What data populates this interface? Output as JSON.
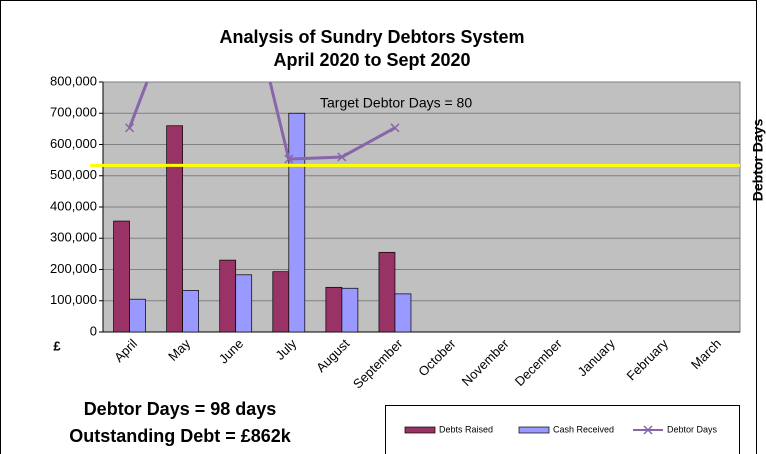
{
  "chart_data": {
    "type": "bar",
    "title": "Analysis of Sundry Debtors System",
    "subtitle": "April 2020 to Sept 2020",
    "y_label": "£",
    "y2_label": "Debtor Days",
    "categories": [
      "April",
      "May",
      "June",
      "July",
      "August",
      "September",
      "October",
      "November",
      "December",
      "January",
      "February",
      "March"
    ],
    "series": [
      {
        "name": "Debts Raised",
        "type": "bar",
        "color": "#993366",
        "values": [
          355000,
          660000,
          230000,
          193000,
          143000,
          255000,
          null,
          null,
          null,
          null,
          null,
          null
        ]
      },
      {
        "name": "Cash Received",
        "type": "bar",
        "color": "#9999ff",
        "values": [
          105000,
          133000,
          183000,
          700000,
          140000,
          122000,
          null,
          null,
          null,
          null,
          null,
          null
        ]
      },
      {
        "name": "Debtor Days",
        "type": "line",
        "axis": "y2",
        "color": "#8866aa",
        "values": [
          98,
          165,
          188,
          83,
          84,
          98,
          null,
          null,
          null,
          null,
          null,
          null
        ]
      }
    ],
    "ylim": [
      0,
      800000
    ],
    "yticks": [
      0,
      {
        "value": 100000,
        "label": "100,000"
      },
      {
        "value": 200000,
        "label": "200,000"
      },
      {
        "value": 300000,
        "label": "300,000"
      },
      {
        "value": 400000,
        "label": "400,000"
      },
      {
        "value": 500000,
        "label": "500,000"
      },
      {
        "value": 600000,
        "label": "600,000"
      },
      {
        "value": 700000,
        "label": "700,000"
      },
      {
        "value": 800000,
        "label": "800,000"
      }
    ],
    "y2lim": [
      0,
      120
    ],
    "target": {
      "value": 80,
      "axis": "y2",
      "color": "#ffff00",
      "label": "Target Debtor Days = 80"
    },
    "grid": true,
    "legend": "bottom-right",
    "notes": [
      "Debtor Days = 98 days",
      "Outstanding Debt = £862k"
    ]
  }
}
